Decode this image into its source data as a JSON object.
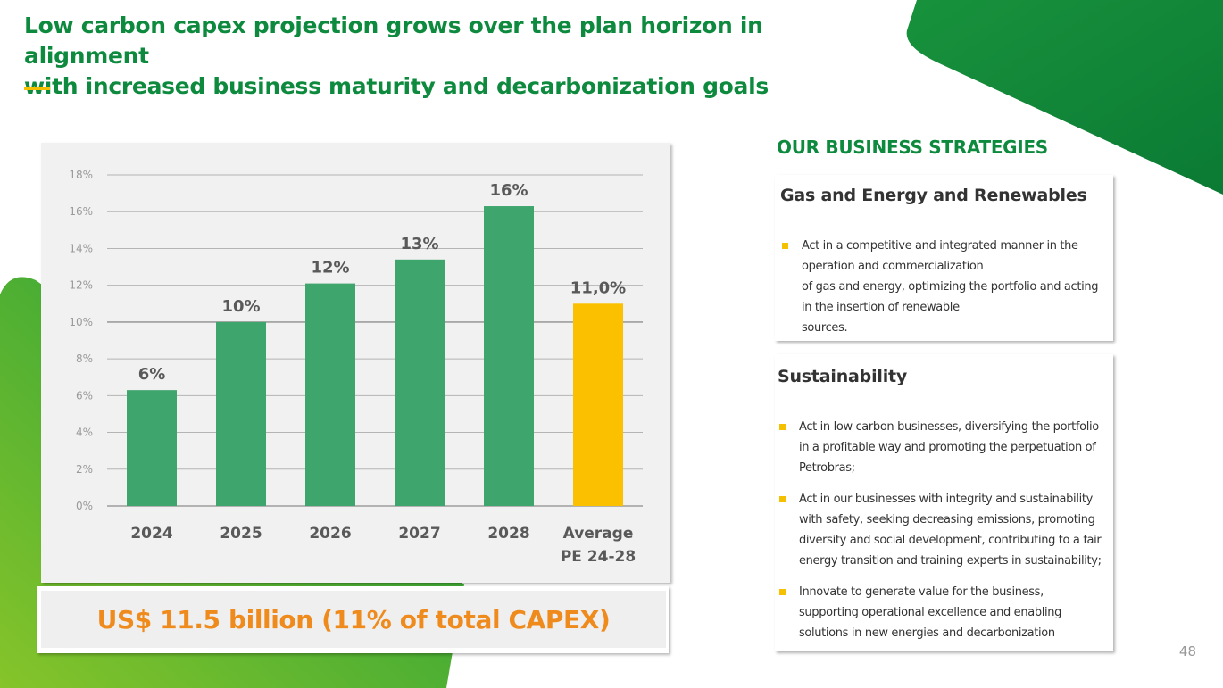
{
  "title": {
    "line1": "Low carbon capex projection grows over the plan horizon in alignment",
    "line2": "with increased business maturity and decarbonization goals"
  },
  "colors": {
    "brand_green": "#0e8a3e",
    "bar_green": "#3ea56c",
    "average_bar": "#fbc100",
    "accent_yellow": "#f5c000",
    "total_orange": "#ef8a1c"
  },
  "chart_data": {
    "type": "bar",
    "categories": [
      "2024",
      "2025",
      "2026",
      "2027",
      "2028",
      "Average PE 24-28"
    ],
    "category_labels": [
      [
        "2024"
      ],
      [
        "2025"
      ],
      [
        "2026"
      ],
      [
        "2027"
      ],
      [
        "2028"
      ],
      [
        "Average",
        "PE 24-28"
      ]
    ],
    "values": [
      6.3,
      10,
      12.1,
      13.4,
      16.3,
      11.0
    ],
    "value_labels": [
      "6%",
      "10%",
      "12%",
      "13%",
      "16%",
      "11,0%"
    ],
    "highlight_index": 5,
    "y_ticks": [
      "0%",
      "2%",
      "4%",
      "6%",
      "8%",
      "10%",
      "12%",
      "14%",
      "16%",
      "18%"
    ],
    "ylim": [
      0,
      18
    ],
    "ytick_step": 2,
    "gridlines": true,
    "title": "",
    "xlabel": "",
    "ylabel": ""
  },
  "total": {
    "text": "US$ 11.5 billion (11% of total CAPEX)"
  },
  "strategies": {
    "heading": "OUR BUSINESS STRATEGIES",
    "cards": [
      {
        "title": "Gas and Energy and Renewables",
        "bullets": [
          {
            "lines": [
              "Act in a competitive and integrated manner in the",
              "operation and commercialization",
              "of gas and energy, optimizing the portfolio and acting",
              "in the insertion of renewable",
              "sources."
            ]
          }
        ]
      },
      {
        "title": "Sustainability",
        "bullets": [
          {
            "lines": [
              "Act in low carbon businesses, diversifying the portfolio",
              "in a profitable way and promoting the perpetuation of",
              "Petrobras;"
            ]
          },
          {
            "lines": [
              "Act in our businesses with integrity and sustainability",
              "with safety, seeking decreasing emissions, promoting",
              "diversity and social development, contributing to a fair",
              "energy transition and training experts in sustainability;"
            ]
          },
          {
            "lines": [
              "Innovate to generate value for the business,",
              "supporting operational excellence and enabling",
              "solutions in new energies and decarbonization"
            ]
          }
        ]
      }
    ]
  },
  "page_number": "48"
}
